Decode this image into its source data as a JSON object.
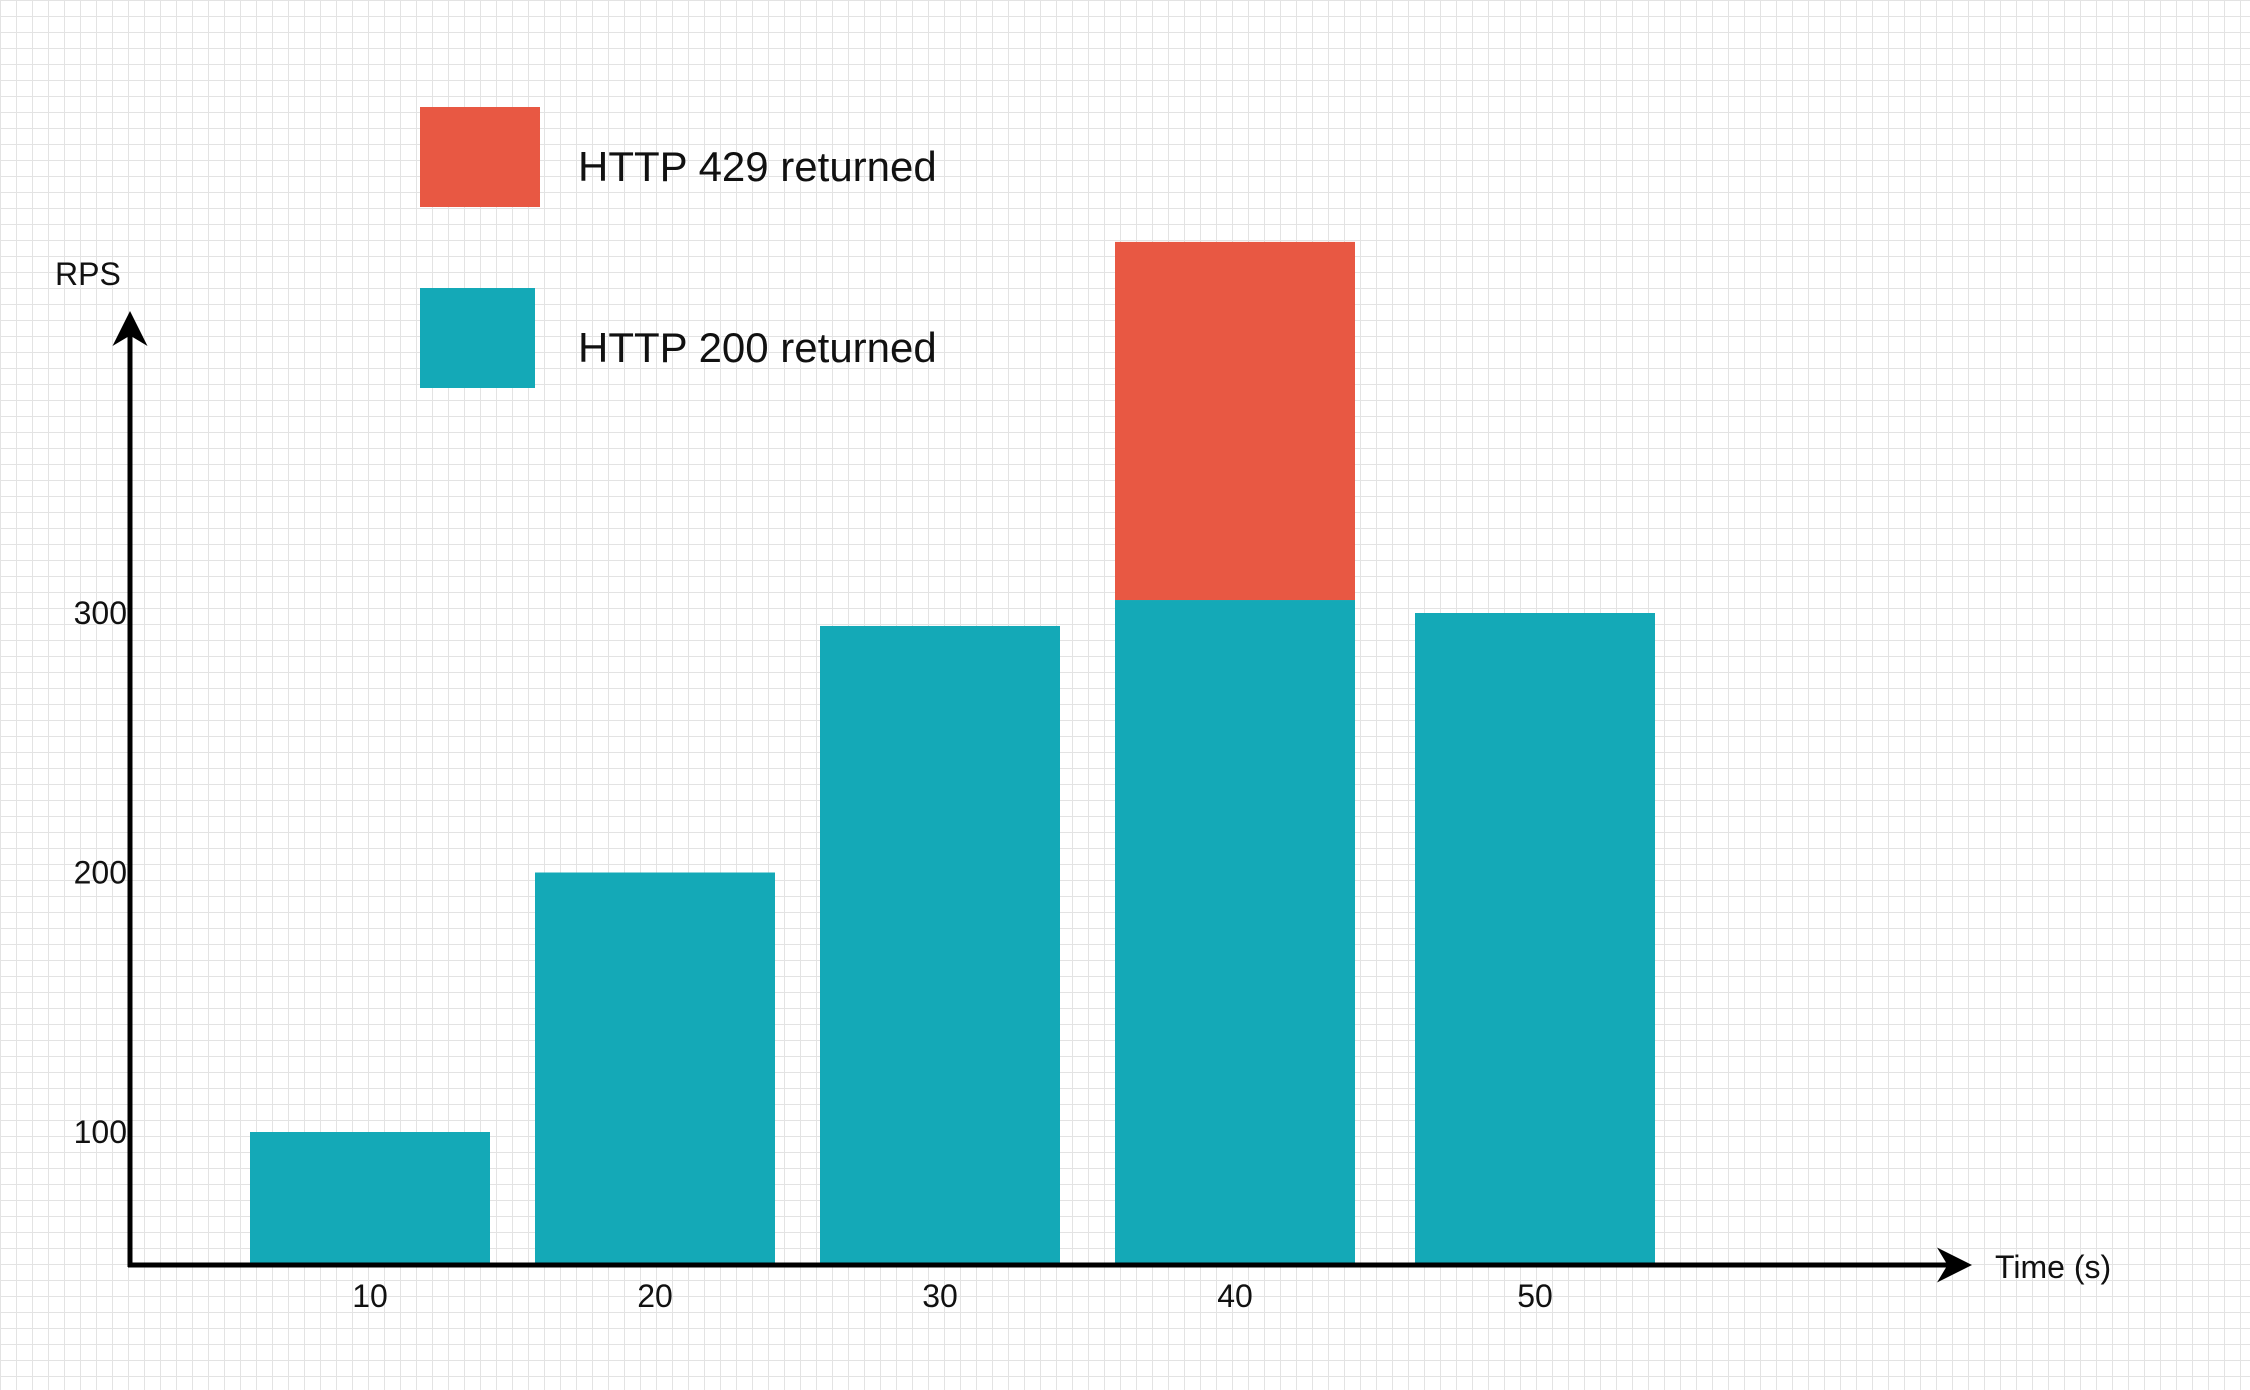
{
  "chart_data": {
    "type": "bar",
    "stacked": true,
    "xlabel": "Time (s)",
    "ylabel": "RPS",
    "categories": [
      "10",
      "20",
      "30",
      "40",
      "50"
    ],
    "yticks": [
      "100",
      "200",
      "300"
    ],
    "series": [
      {
        "name": "HTTP 200 returned",
        "color": "#14a9b7",
        "values": [
          100,
          200,
          295,
          305,
          300
        ]
      },
      {
        "name": "HTTP 429 returned",
        "color": "#e85843",
        "values": [
          0,
          0,
          0,
          138,
          0
        ]
      }
    ],
    "legend_order": [
      "HTTP 429 returned",
      "HTTP 200 returned"
    ],
    "legend_position": "top-left",
    "grid": true
  }
}
